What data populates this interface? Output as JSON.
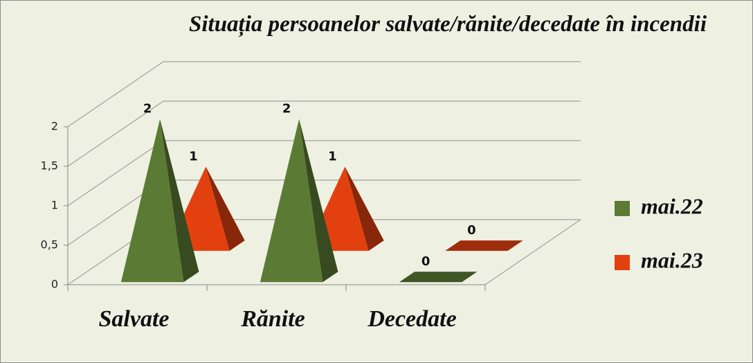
{
  "chart_data": {
    "type": "pyramid3d",
    "title": "Situația persoanelor salvate/rănite/decedate în incendii",
    "categories": [
      "Salvate",
      "Rănite",
      "Decedate"
    ],
    "series": [
      {
        "name": "mai.22",
        "color": "#5b7b35",
        "values": [
          2,
          2,
          0
        ]
      },
      {
        "name": "mai.23",
        "color": "#e2410f",
        "values": [
          1,
          1,
          0
        ]
      }
    ],
    "ylim": [
      0,
      2
    ],
    "yticks": [
      0,
      {
        "value": 0.5,
        "label": "0,5"
      },
      1,
      {
        "value": 1.5,
        "label": "1,5"
      },
      2
    ],
    "grid": true,
    "legend": "right"
  }
}
